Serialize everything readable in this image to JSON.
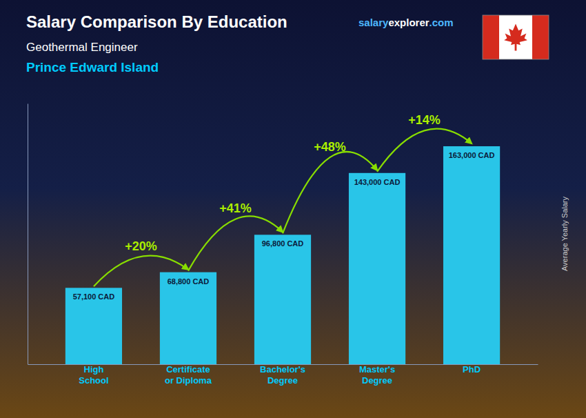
{
  "chart_data": {
    "type": "bar",
    "title": "Salary Comparison By Education",
    "subtitle": [
      "Geothermal Engineer",
      "Prince Edward Island"
    ],
    "source": [
      "salary",
      "explorer",
      ".com"
    ],
    "ylabel": "Average Yearly Salary",
    "categories": [
      "High\nSchool",
      "Certificate\nor Diploma",
      "Bachelor's\nDegree",
      "Master's\nDegree",
      "PhD"
    ],
    "values": [
      57100,
      68800,
      96800,
      143000,
      163000
    ],
    "value_labels": [
      "57,100 CAD",
      "68,800 CAD",
      "96,800 CAD",
      "143,000 CAD",
      "163,000 CAD"
    ],
    "data_labels": true,
    "annotations": [
      "+20%",
      "+41%",
      "+48%",
      "+14%"
    ],
    "color": "#29c5e8",
    "ylim": [
      0,
      195000
    ],
    "tick_labels": "x",
    "grid": false
  }
}
